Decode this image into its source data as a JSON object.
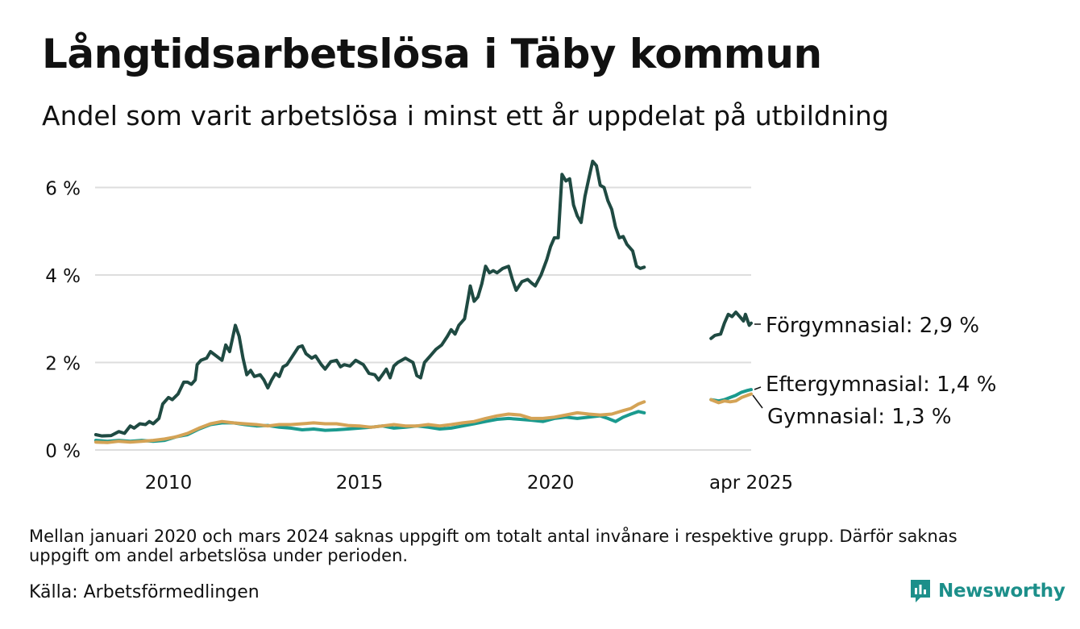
{
  "header": {
    "title": "Långtidsarbetslösa i Täby kommun",
    "subtitle": "Andel som varit arbetslösa i minst ett år uppdelat på utbildning"
  },
  "footer": {
    "note": "Mellan januari 2020 och mars 2024 saknas uppgift om totalt antal invånare i respektive grupp. Därför saknas uppgift om andel arbetslösa under perioden.",
    "source": "Källa: Arbetsförmedlingen",
    "brand": "Newsworthy"
  },
  "colors": {
    "forgymnasial": "#1f4a42",
    "eftergymnasial": "#1a9a8e",
    "gymnasial": "#d4a356",
    "grid": "#dddddd",
    "brand": "#1c8f8a"
  },
  "chart_data": {
    "type": "line",
    "title": "Långtidsarbetslösa i Täby kommun",
    "subtitle": "Andel som varit arbetslösa i minst ett år uppdelat på utbildning",
    "x_unit": "year",
    "xlim": [
      2008.08,
      2025.25
    ],
    "x_ticks": [
      {
        "x": 2010,
        "label": "2010"
      },
      {
        "x": 2015,
        "label": "2015"
      },
      {
        "x": 2020,
        "label": "2020"
      },
      {
        "x": 2025.25,
        "label": "apr 2025"
      }
    ],
    "ylim": [
      0,
      6.6
    ],
    "y_ticks": [
      {
        "y": 0,
        "label": "0 %"
      },
      {
        "y": 2,
        "label": "2 %"
      },
      {
        "y": 4,
        "label": "4 %"
      },
      {
        "y": 6,
        "label": "6 %"
      }
    ],
    "grid": true,
    "legend": "direct labels at right end",
    "series": [
      {
        "name": "Förgymnasial",
        "end_label": "Förgymnasial: 2,9 %",
        "color_key": "forgymnasial",
        "segments": [
          [
            [
              2008.1,
              0.35
            ],
            [
              2008.25,
              0.32
            ],
            [
              2008.5,
              0.33
            ],
            [
              2008.7,
              0.42
            ],
            [
              2008.85,
              0.38
            ],
            [
              2009.0,
              0.55
            ],
            [
              2009.1,
              0.5
            ],
            [
              2009.25,
              0.6
            ],
            [
              2009.4,
              0.58
            ],
            [
              2009.5,
              0.65
            ],
            [
              2009.6,
              0.6
            ],
            [
              2009.75,
              0.72
            ],
            [
              2009.85,
              1.05
            ],
            [
              2010.0,
              1.2
            ],
            [
              2010.1,
              1.15
            ],
            [
              2010.25,
              1.28
            ],
            [
              2010.4,
              1.55
            ],
            [
              2010.5,
              1.55
            ],
            [
              2010.6,
              1.5
            ],
            [
              2010.7,
              1.6
            ],
            [
              2010.75,
              1.95
            ],
            [
              2010.85,
              2.05
            ],
            [
              2011.0,
              2.1
            ],
            [
              2011.1,
              2.25
            ],
            [
              2011.25,
              2.15
            ],
            [
              2011.4,
              2.05
            ],
            [
              2011.5,
              2.4
            ],
            [
              2011.6,
              2.25
            ],
            [
              2011.75,
              2.85
            ],
            [
              2011.85,
              2.6
            ],
            [
              2011.95,
              2.1
            ],
            [
              2012.05,
              1.72
            ],
            [
              2012.15,
              1.82
            ],
            [
              2012.25,
              1.68
            ],
            [
              2012.4,
              1.72
            ],
            [
              2012.5,
              1.6
            ],
            [
              2012.6,
              1.42
            ],
            [
              2012.7,
              1.6
            ],
            [
              2012.8,
              1.75
            ],
            [
              2012.9,
              1.68
            ],
            [
              2013.0,
              1.9
            ],
            [
              2013.1,
              1.95
            ],
            [
              2013.25,
              2.15
            ],
            [
              2013.4,
              2.35
            ],
            [
              2013.5,
              2.38
            ],
            [
              2013.6,
              2.2
            ],
            [
              2013.75,
              2.1
            ],
            [
              2013.85,
              2.15
            ],
            [
              2014.0,
              1.95
            ],
            [
              2014.1,
              1.85
            ],
            [
              2014.25,
              2.02
            ],
            [
              2014.4,
              2.05
            ],
            [
              2014.5,
              1.9
            ],
            [
              2014.6,
              1.95
            ],
            [
              2014.75,
              1.92
            ],
            [
              2014.9,
              2.05
            ],
            [
              2015.0,
              2.0
            ],
            [
              2015.1,
              1.95
            ],
            [
              2015.25,
              1.75
            ],
            [
              2015.4,
              1.72
            ],
            [
              2015.5,
              1.6
            ],
            [
              2015.6,
              1.72
            ],
            [
              2015.7,
              1.85
            ],
            [
              2015.8,
              1.65
            ],
            [
              2015.9,
              1.92
            ],
            [
              2016.0,
              2.0
            ],
            [
              2016.2,
              2.1
            ],
            [
              2016.3,
              2.05
            ],
            [
              2016.4,
              2.0
            ],
            [
              2016.5,
              1.7
            ],
            [
              2016.6,
              1.65
            ],
            [
              2016.7,
              2.0
            ],
            [
              2016.85,
              2.15
            ],
            [
              2017.0,
              2.3
            ],
            [
              2017.15,
              2.4
            ],
            [
              2017.3,
              2.6
            ],
            [
              2017.4,
              2.75
            ],
            [
              2017.5,
              2.65
            ],
            [
              2017.6,
              2.85
            ],
            [
              2017.75,
              3.0
            ],
            [
              2017.85,
              3.5
            ],
            [
              2017.9,
              3.75
            ],
            [
              2018.0,
              3.4
            ],
            [
              2018.1,
              3.5
            ],
            [
              2018.2,
              3.8
            ],
            [
              2018.3,
              4.2
            ],
            [
              2018.4,
              4.05
            ],
            [
              2018.5,
              4.1
            ],
            [
              2018.6,
              4.05
            ],
            [
              2018.75,
              4.15
            ],
            [
              2018.9,
              4.2
            ],
            [
              2019.0,
              3.9
            ],
            [
              2019.1,
              3.65
            ],
            [
              2019.25,
              3.85
            ],
            [
              2019.4,
              3.9
            ],
            [
              2019.5,
              3.82
            ],
            [
              2019.6,
              3.75
            ],
            [
              2019.75,
              4.0
            ],
            [
              2019.9,
              4.35
            ],
            [
              2020.0,
              4.65
            ],
            [
              2020.1,
              4.85
            ],
            [
              2020.2,
              4.85
            ],
            [
              2020.3,
              6.3
            ],
            [
              2020.4,
              6.15
            ],
            [
              2020.5,
              6.2
            ],
            [
              2020.6,
              5.6
            ],
            [
              2020.7,
              5.35
            ],
            [
              2020.8,
              5.2
            ],
            [
              2020.9,
              5.8
            ],
            [
              2021.0,
              6.2
            ],
            [
              2021.1,
              6.6
            ],
            [
              2021.2,
              6.5
            ],
            [
              2021.3,
              6.05
            ],
            [
              2021.4,
              6.0
            ],
            [
              2021.5,
              5.7
            ],
            [
              2021.6,
              5.5
            ],
            [
              2021.7,
              5.1
            ],
            [
              2021.8,
              4.85
            ],
            [
              2021.9,
              4.88
            ],
            [
              2022.0,
              4.7
            ],
            [
              2022.15,
              4.55
            ],
            [
              2022.25,
              4.2
            ],
            [
              2022.35,
              4.15
            ],
            [
              2022.45,
              4.18
            ]
          ],
          [
            [
              2024.2,
              2.55
            ],
            [
              2024.3,
              2.62
            ],
            [
              2024.45,
              2.65
            ],
            [
              2024.55,
              2.9
            ],
            [
              2024.65,
              3.1
            ],
            [
              2024.75,
              3.05
            ],
            [
              2024.85,
              3.15
            ],
            [
              2024.95,
              3.05
            ],
            [
              2025.05,
              2.95
            ],
            [
              2025.1,
              3.1
            ],
            [
              2025.2,
              2.85
            ],
            [
              2025.25,
              2.9
            ]
          ]
        ]
      },
      {
        "name": "Eftergymnasial",
        "end_label": "Eftergymnasial: 1,4 %",
        "color_key": "eftergymnasial",
        "segments": [
          [
            [
              2008.1,
              0.22
            ],
            [
              2008.4,
              0.2
            ],
            [
              2008.7,
              0.22
            ],
            [
              2009.0,
              0.2
            ],
            [
              2009.3,
              0.22
            ],
            [
              2009.6,
              0.2
            ],
            [
              2009.9,
              0.22
            ],
            [
              2010.2,
              0.3
            ],
            [
              2010.5,
              0.35
            ],
            [
              2010.8,
              0.48
            ],
            [
              2011.1,
              0.58
            ],
            [
              2011.4,
              0.62
            ],
            [
              2011.7,
              0.62
            ],
            [
              2012.0,
              0.58
            ],
            [
              2012.3,
              0.55
            ],
            [
              2012.6,
              0.56
            ],
            [
              2012.9,
              0.52
            ],
            [
              2013.2,
              0.5
            ],
            [
              2013.5,
              0.46
            ],
            [
              2013.8,
              0.48
            ],
            [
              2014.1,
              0.45
            ],
            [
              2014.4,
              0.46
            ],
            [
              2014.7,
              0.48
            ],
            [
              2015.0,
              0.5
            ],
            [
              2015.3,
              0.52
            ],
            [
              2015.6,
              0.55
            ],
            [
              2015.9,
              0.5
            ],
            [
              2016.2,
              0.52
            ],
            [
              2016.5,
              0.55
            ],
            [
              2016.8,
              0.52
            ],
            [
              2017.1,
              0.48
            ],
            [
              2017.4,
              0.5
            ],
            [
              2017.7,
              0.55
            ],
            [
              2018.0,
              0.6
            ],
            [
              2018.3,
              0.65
            ],
            [
              2018.6,
              0.7
            ],
            [
              2018.9,
              0.72
            ],
            [
              2019.2,
              0.7
            ],
            [
              2019.5,
              0.68
            ],
            [
              2019.8,
              0.65
            ],
            [
              2020.1,
              0.72
            ],
            [
              2020.4,
              0.75
            ],
            [
              2020.7,
              0.72
            ],
            [
              2021.0,
              0.75
            ],
            [
              2021.3,
              0.78
            ],
            [
              2021.5,
              0.72
            ],
            [
              2021.7,
              0.65
            ],
            [
              2021.9,
              0.75
            ],
            [
              2022.1,
              0.82
            ],
            [
              2022.3,
              0.88
            ],
            [
              2022.45,
              0.85
            ]
          ],
          [
            [
              2024.2,
              1.15
            ],
            [
              2024.4,
              1.12
            ],
            [
              2024.55,
              1.15
            ],
            [
              2024.7,
              1.2
            ],
            [
              2024.85,
              1.25
            ],
            [
              2025.0,
              1.32
            ],
            [
              2025.15,
              1.36
            ],
            [
              2025.25,
              1.38
            ]
          ]
        ]
      },
      {
        "name": "Gymnasial",
        "end_label": "Gymnasial: 1,3 %",
        "color_key": "gymnasial",
        "segments": [
          [
            [
              2008.1,
              0.18
            ],
            [
              2008.4,
              0.17
            ],
            [
              2008.7,
              0.2
            ],
            [
              2009.0,
              0.18
            ],
            [
              2009.3,
              0.2
            ],
            [
              2009.6,
              0.22
            ],
            [
              2009.9,
              0.25
            ],
            [
              2010.2,
              0.3
            ],
            [
              2010.5,
              0.38
            ],
            [
              2010.8,
              0.5
            ],
            [
              2011.1,
              0.6
            ],
            [
              2011.4,
              0.65
            ],
            [
              2011.7,
              0.62
            ],
            [
              2012.0,
              0.6
            ],
            [
              2012.3,
              0.58
            ],
            [
              2012.6,
              0.55
            ],
            [
              2012.9,
              0.58
            ],
            [
              2013.2,
              0.58
            ],
            [
              2013.5,
              0.6
            ],
            [
              2013.8,
              0.62
            ],
            [
              2014.1,
              0.6
            ],
            [
              2014.4,
              0.6
            ],
            [
              2014.7,
              0.56
            ],
            [
              2015.0,
              0.55
            ],
            [
              2015.3,
              0.52
            ],
            [
              2015.6,
              0.55
            ],
            [
              2015.9,
              0.58
            ],
            [
              2016.2,
              0.55
            ],
            [
              2016.5,
              0.55
            ],
            [
              2016.8,
              0.58
            ],
            [
              2017.1,
              0.55
            ],
            [
              2017.4,
              0.58
            ],
            [
              2017.7,
              0.62
            ],
            [
              2018.0,
              0.65
            ],
            [
              2018.3,
              0.72
            ],
            [
              2018.6,
              0.78
            ],
            [
              2018.9,
              0.82
            ],
            [
              2019.2,
              0.8
            ],
            [
              2019.5,
              0.72
            ],
            [
              2019.8,
              0.72
            ],
            [
              2020.1,
              0.75
            ],
            [
              2020.4,
              0.8
            ],
            [
              2020.7,
              0.85
            ],
            [
              2021.0,
              0.82
            ],
            [
              2021.3,
              0.8
            ],
            [
              2021.6,
              0.82
            ],
            [
              2021.9,
              0.9
            ],
            [
              2022.1,
              0.95
            ],
            [
              2022.3,
              1.05
            ],
            [
              2022.45,
              1.1
            ]
          ],
          [
            [
              2024.2,
              1.15
            ],
            [
              2024.4,
              1.08
            ],
            [
              2024.55,
              1.12
            ],
            [
              2024.7,
              1.1
            ],
            [
              2024.85,
              1.12
            ],
            [
              2025.0,
              1.2
            ],
            [
              2025.15,
              1.25
            ],
            [
              2025.25,
              1.28
            ]
          ]
        ]
      }
    ]
  }
}
